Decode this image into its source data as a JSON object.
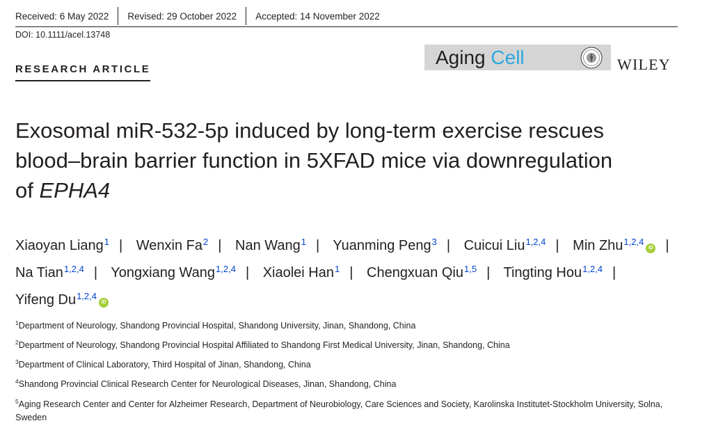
{
  "header": {
    "received": "Received: 6 May 2022",
    "revised": "Revised: 29 October 2022",
    "accepted": "Accepted: 14 November 2022",
    "doi": "DOI: 10.1111/acel.13748",
    "article_type": "RESEARCH ARTICLE",
    "journal_name_part1": "Aging",
    "journal_name_part2": "Cell",
    "publisher": "WILEY"
  },
  "title": {
    "line1": "Exosomal miR-532-5p induced by long-term exercise rescues",
    "line2": "blood–brain barrier function in 5XFAD mice via downregulation",
    "line3_prefix": "of ",
    "line3_italic": "EPHA4"
  },
  "authors": [
    {
      "name": "Xiaoyan Liang",
      "aff": "1"
    },
    {
      "name": "Wenxin Fa",
      "aff": "2"
    },
    {
      "name": "Nan Wang",
      "aff": "1"
    },
    {
      "name": "Yuanming Peng",
      "aff": "3"
    },
    {
      "name": "Cuicui Liu",
      "aff": "1,2,4"
    },
    {
      "name": "Min Zhu",
      "aff": "1,2,4"
    },
    {
      "name": "Na Tian",
      "aff": "1,2,4"
    },
    {
      "name": "Yongxiang Wang",
      "aff": "1,2,4"
    },
    {
      "name": "Xiaolei Han",
      "aff": "1"
    },
    {
      "name": "Chengxuan Qiu",
      "aff": "1,5"
    },
    {
      "name": "Tingting Hou",
      "aff": "1,2,4"
    },
    {
      "name": "Yifeng Du",
      "aff": "1,2,4"
    }
  ],
  "orcid_label": "iD",
  "affiliations": [
    {
      "num": "1",
      "text": "Department of Neurology, Shandong Provincial Hospital, Shandong University, Jinan, Shandong, China"
    },
    {
      "num": "2",
      "text": "Department of Neurology, Shandong Provincial Hospital Affiliated to Shandong First Medical University, Jinan, Shandong, China"
    },
    {
      "num": "3",
      "text": "Department of Clinical Laboratory, Third Hospital of Jinan, Shandong, China"
    },
    {
      "num": "4",
      "text": "Shandong Provincial Clinical Research Center for Neurological Diseases, Jinan, Shandong, China"
    },
    {
      "num": "5",
      "text": "Aging Research Center and Center for Alzheimer Research, Department of Neurobiology, Care Sciences and Society, Karolinska Institutet-Stockholm University, Solna, Sweden"
    }
  ]
}
